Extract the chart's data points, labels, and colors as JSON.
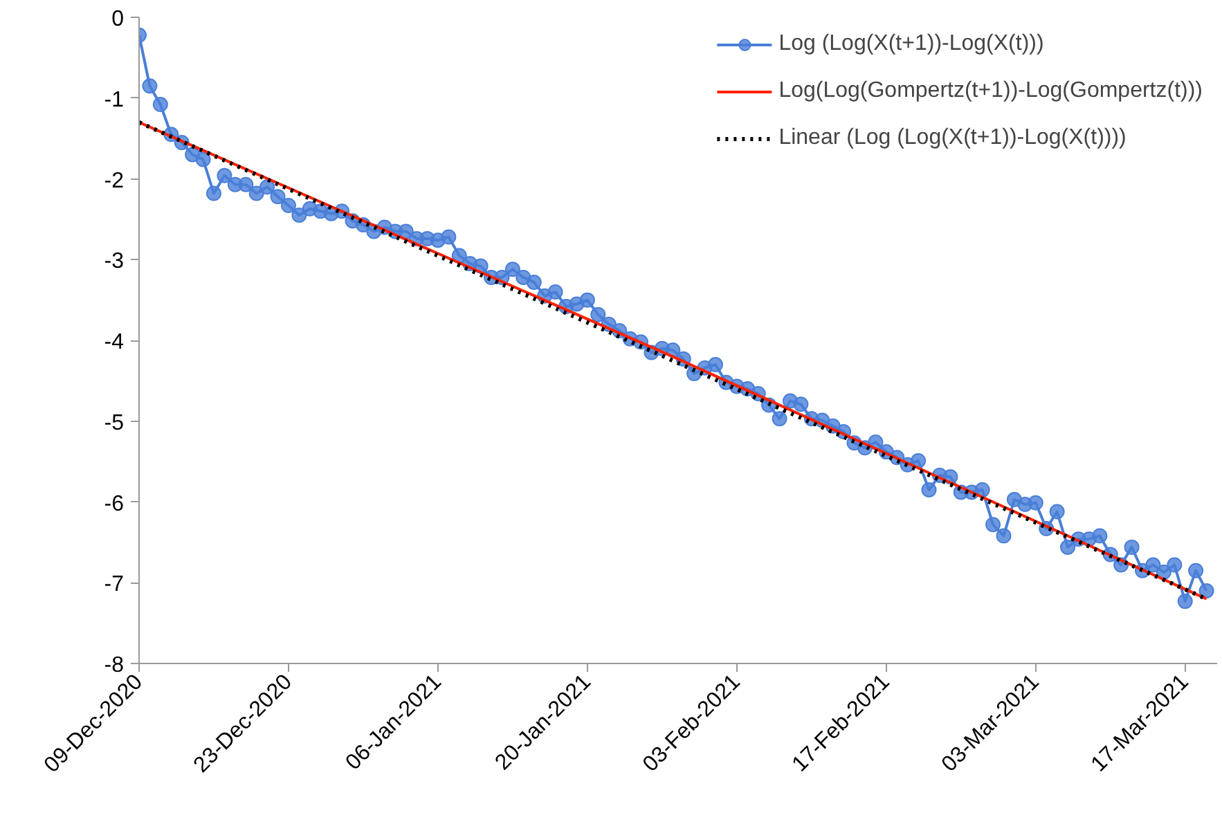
{
  "chart_data": {
    "type": "line",
    "x": [
      "2020-12-09",
      "2020-12-10",
      "2020-12-11",
      "2020-12-12",
      "2020-12-13",
      "2020-12-14",
      "2020-12-15",
      "2020-12-16",
      "2020-12-17",
      "2020-12-18",
      "2020-12-19",
      "2020-12-20",
      "2020-12-21",
      "2020-12-22",
      "2020-12-23",
      "2020-12-24",
      "2020-12-25",
      "2020-12-26",
      "2020-12-27",
      "2020-12-28",
      "2020-12-29",
      "2020-12-30",
      "2020-12-31",
      "2021-01-01",
      "2021-01-02",
      "2021-01-03",
      "2021-01-04",
      "2021-01-05",
      "2021-01-06",
      "2021-01-07",
      "2021-01-08",
      "2021-01-09",
      "2021-01-10",
      "2021-01-11",
      "2021-01-12",
      "2021-01-13",
      "2021-01-14",
      "2021-01-15",
      "2021-01-16",
      "2021-01-17",
      "2021-01-18",
      "2021-01-19",
      "2021-01-20",
      "2021-01-21",
      "2021-01-22",
      "2021-01-23",
      "2021-01-24",
      "2021-01-25",
      "2021-01-26",
      "2021-01-27",
      "2021-01-28",
      "2021-01-29",
      "2021-01-30",
      "2021-01-31",
      "2021-02-01",
      "2021-02-02",
      "2021-02-03",
      "2021-02-04",
      "2021-02-05",
      "2021-02-06",
      "2021-02-07",
      "2021-02-08",
      "2021-02-09",
      "2021-02-10",
      "2021-02-11",
      "2021-02-12",
      "2021-02-13",
      "2021-02-14",
      "2021-02-15",
      "2021-02-16",
      "2021-02-17",
      "2021-02-18",
      "2021-02-19",
      "2021-02-20",
      "2021-02-21",
      "2021-02-22",
      "2021-02-23",
      "2021-02-24",
      "2021-02-25",
      "2021-02-26",
      "2021-02-27",
      "2021-02-28",
      "2021-03-01",
      "2021-03-02",
      "2021-03-03",
      "2021-03-04",
      "2021-03-05",
      "2021-03-06",
      "2021-03-07",
      "2021-03-08",
      "2021-03-09",
      "2021-03-10",
      "2021-03-11",
      "2021-03-12",
      "2021-03-13",
      "2021-03-14",
      "2021-03-15",
      "2021-03-16",
      "2021-03-17",
      "2021-03-18",
      "2021-03-19"
    ],
    "series": [
      {
        "name": "Log (Log(X(t+1))-Log(X(t)))",
        "color": "#4a7fd8",
        "marker": "circle",
        "line_style": "solid",
        "values": [
          -0.22,
          -0.85,
          -1.08,
          -1.45,
          -1.55,
          -1.7,
          -1.76,
          -2.18,
          -1.96,
          -2.07,
          -2.07,
          -2.18,
          -2.1,
          -2.22,
          -2.33,
          -2.45,
          -2.37,
          -2.4,
          -2.43,
          -2.4,
          -2.52,
          -2.57,
          -2.65,
          -2.6,
          -2.65,
          -2.65,
          -2.74,
          -2.74,
          -2.76,
          -2.72,
          -2.95,
          -3.05,
          -3.08,
          -3.22,
          -3.22,
          -3.12,
          -3.22,
          -3.28,
          -3.45,
          -3.4,
          -3.58,
          -3.55,
          -3.5,
          -3.68,
          -3.8,
          -3.88,
          -3.98,
          -4.02,
          -4.15,
          -4.1,
          -4.12,
          -4.23,
          -4.41,
          -4.34,
          -4.3,
          -4.52,
          -4.57,
          -4.6,
          -4.66,
          -4.8,
          -4.97,
          -4.75,
          -4.79,
          -4.97,
          -4.99,
          -5.06,
          -5.13,
          -5.27,
          -5.33,
          -5.26,
          -5.38,
          -5.45,
          -5.54,
          -5.49,
          -5.85,
          -5.67,
          -5.69,
          -5.88,
          -5.88,
          -5.85,
          -6.28,
          -6.42,
          -5.97,
          -6.03,
          -6.01,
          -6.33,
          -6.12,
          -6.56,
          -6.46,
          -6.46,
          -6.42,
          -6.65,
          -6.78,
          -6.56,
          -6.85,
          -6.78,
          -6.87,
          -6.78,
          -7.23,
          -6.85,
          -7.1
        ]
      },
      {
        "name": "Log(Log(Gompertz(t+1))-Log(Gompertz(t)))",
        "color": "#ff2200",
        "marker": "none",
        "line_style": "solid",
        "x": [
          "2020-12-09",
          "2021-01-03",
          "2021-01-28",
          "2021-02-22",
          "2021-03-19"
        ],
        "values": [
          -1.3,
          -2.75,
          -4.2,
          -5.7,
          -7.2
        ]
      },
      {
        "name": "Linear (Log (Log(X(t+1))-Log(X(t))))",
        "color": "#000000",
        "marker": "none",
        "line_style": "dotted",
        "x": [
          "2020-12-09",
          "2021-03-19"
        ],
        "values": [
          -1.3,
          -7.2
        ]
      }
    ],
    "xlim": [
      "2020-12-09",
      "2021-03-20"
    ],
    "xticks": [
      {
        "value": "2020-12-09",
        "label": "09-Dec-2020"
      },
      {
        "value": "2020-12-23",
        "label": "23-Dec-2020"
      },
      {
        "value": "2021-01-06",
        "label": "06-Jan-2021"
      },
      {
        "value": "2021-01-20",
        "label": "20-Jan-2021"
      },
      {
        "value": "2021-02-03",
        "label": "03-Feb-2021"
      },
      {
        "value": "2021-02-17",
        "label": "17-Feb-2021"
      },
      {
        "value": "2021-03-03",
        "label": "03-Mar-2021"
      },
      {
        "value": "2021-03-17",
        "label": "17-Mar-2021"
      }
    ],
    "ylim": [
      -8,
      0
    ],
    "yticks": [
      -8,
      -7,
      -6,
      -5,
      -4,
      -3,
      -2,
      -1,
      0
    ],
    "legend": "top right",
    "grid": false
  }
}
